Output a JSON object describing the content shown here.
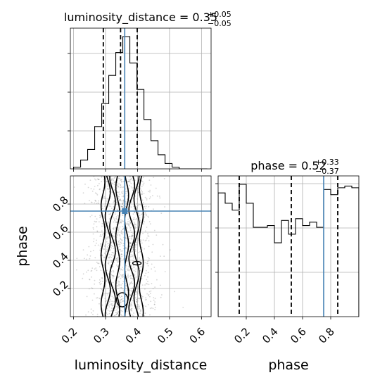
{
  "chart_data": [
    {
      "type": "histogram",
      "panel": "top-left",
      "title_param": "luminosity_distance",
      "title_value": "0.35",
      "title_plus": "+0.05",
      "title_minus": "−0.05",
      "xlim": [
        0.19,
        0.63
      ],
      "bin_edges": [
        0.2,
        0.222,
        0.244,
        0.266,
        0.288,
        0.31,
        0.332,
        0.354,
        0.376,
        0.398,
        0.42,
        0.442,
        0.464,
        0.486,
        0.508,
        0.53,
        0.552,
        0.574,
        0.596,
        0.618
      ],
      "counts": [
        1,
        5,
        11,
        24,
        37,
        53,
        66,
        75,
        60,
        45,
        28,
        16,
        8,
        3,
        1,
        0,
        0,
        0,
        0
      ],
      "quantile_lines": [
        0.293,
        0.347,
        0.399
      ],
      "true_value": 0.36,
      "grid": true
    },
    {
      "type": "histogram",
      "panel": "bottom-right",
      "title_param": "phase",
      "title_value": "0.52",
      "title_plus": "+0.33",
      "title_minus": "−0.37",
      "xlabel": "phase",
      "xlim": [
        0.0,
        1.0
      ],
      "x_ticks": [
        "0.2",
        "0.4",
        "0.6",
        "0.8"
      ],
      "bin_edges": [
        0.0,
        0.05,
        0.1,
        0.15,
        0.2,
        0.25,
        0.3,
        0.35,
        0.4,
        0.45,
        0.5,
        0.55,
        0.6,
        0.65,
        0.7,
        0.75,
        0.8,
        0.85,
        0.9,
        0.95,
        1.0
      ],
      "counts": [
        72,
        66,
        62,
        77,
        66,
        52,
        52,
        53,
        43,
        56,
        48,
        57,
        53,
        55,
        52,
        74,
        71,
        75,
        76,
        75
      ],
      "quantile_lines": [
        0.15,
        0.52,
        0.85
      ],
      "true_value": 0.75,
      "grid": true
    },
    {
      "type": "2d-density",
      "panel": "bottom-left",
      "xlabel": "luminosity_distance",
      "ylabel": "phase",
      "xlim": [
        0.19,
        0.63
      ],
      "ylim": [
        0.0,
        1.0
      ],
      "x_ticks": [
        "0.2",
        "0.3",
        "0.4",
        "0.5",
        "0.6"
      ],
      "y_ticks": [
        "0.2",
        "0.4",
        "0.6",
        "0.8"
      ],
      "true_value": [
        0.36,
        0.75
      ],
      "grid": true
    }
  ]
}
